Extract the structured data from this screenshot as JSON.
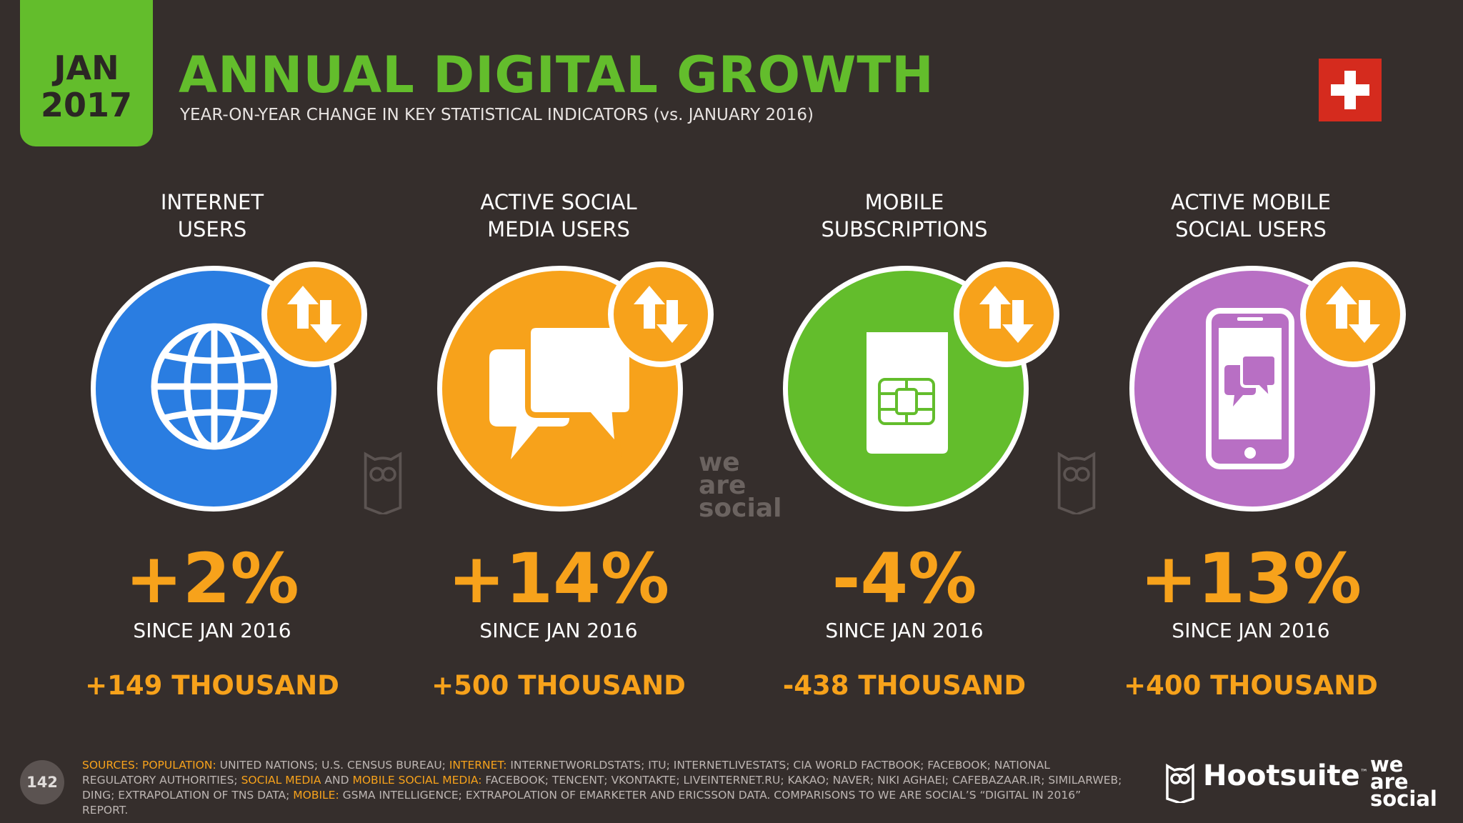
{
  "header": {
    "month": "JAN",
    "year": "2017",
    "title": "ANNUAL DIGITAL GROWTH",
    "subtitle": "YEAR-ON-YEAR CHANGE IN KEY STATISTICAL INDICATORS (vs. JANUARY 2016)",
    "flag_icon": "switzerland-flag-icon"
  },
  "stats": [
    {
      "label_line1": "INTERNET",
      "label_line2": "USERS",
      "percent": "+2%",
      "since": "SINCE JAN 2016",
      "absolute": "+149 THOUSAND",
      "color": "#2a7de1",
      "icon": "globe-icon"
    },
    {
      "label_line1": "ACTIVE SOCIAL",
      "label_line2": "MEDIA USERS",
      "percent": "+14%",
      "since": "SINCE JAN 2016",
      "absolute": "+500 THOUSAND",
      "color": "#f7a21b",
      "icon": "chat-bubbles-icon"
    },
    {
      "label_line1": "MOBILE",
      "label_line2": "SUBSCRIPTIONS",
      "percent": "-4%",
      "since": "SINCE JAN 2016",
      "absolute": "-438 THOUSAND",
      "color": "#63bd2c",
      "icon": "sim-card-icon"
    },
    {
      "label_line1": "ACTIVE MOBILE",
      "label_line2": "SOCIAL USERS",
      "percent": "+13%",
      "since": "SINCE JAN 2016",
      "absolute": "+400 THOUSAND",
      "color": "#b86fc4",
      "icon": "smartphone-chat-icon"
    }
  ],
  "watermark": {
    "line1": "we",
    "line2": "are",
    "line3": "social"
  },
  "footer": {
    "page_number": "142",
    "sources_label": "SOURCES:",
    "population_label": "POPULATION:",
    "population_text": " UNITED NATIONS; U.S. CENSUS BUREAU; ",
    "internet_label": "INTERNET:",
    "internet_text": " INTERNETWORLDSTATS; ITU; INTERNETLIVESTATS; CIA WORLD FACTBOOK; FACEBOOK; NATIONAL REGULATORY AUTHORITIES; ",
    "social_label": "SOCIAL MEDIA",
    "and_text": " AND ",
    "mobile_social_label": "MOBILE SOCIAL MEDIA:",
    "social_text": " FACEBOOK; TENCENT; VKONTAKTE; LIVEINTERNET.RU; KAKAO; NAVER; NIKI AGHAEI; CAFEBAZAAR.IR; SIMILARWEB; DING; EXTRAPOLATION OF TNS DATA; ",
    "mobile_label": "MOBILE:",
    "mobile_text": " GSMA INTELLIGENCE; EXTRAPOLATION OF EMARKETER AND ERICSSON DATA. COMPARISONS TO WE ARE SOCIAL’S “DIGITAL IN 2016” REPORT.",
    "brand1": "Hootsuite",
    "brand1_tm": "™",
    "brand2_line1": "we",
    "brand2_line2": "are",
    "brand2_line3": "social"
  }
}
